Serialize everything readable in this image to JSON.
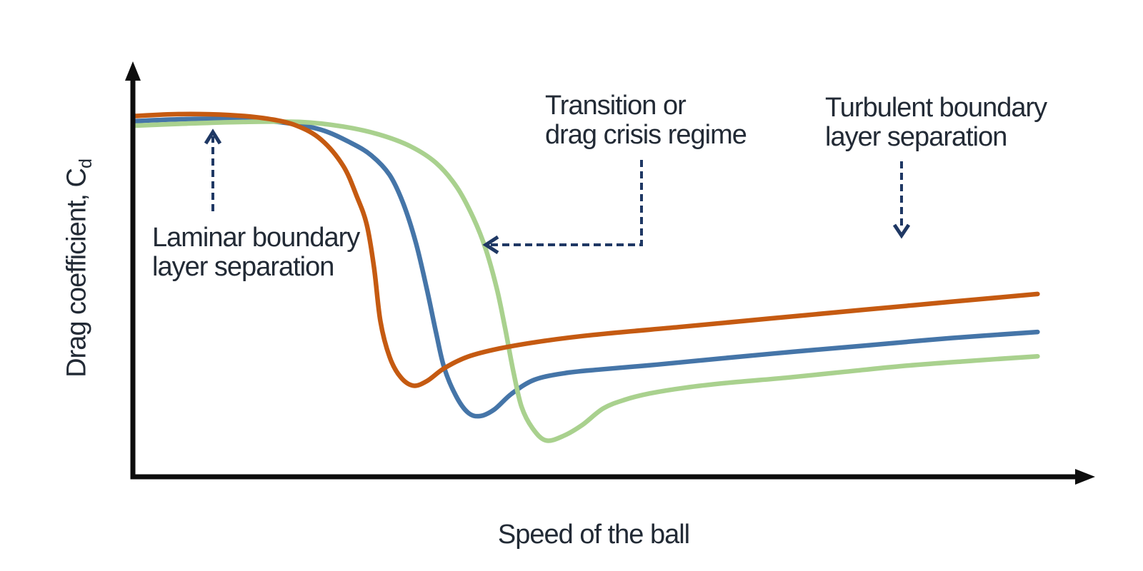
{
  "figure": {
    "x_axis_label": "Speed of the ball",
    "y_axis_label_main": "Drag coefficient, C",
    "y_axis_label_sub": "d"
  },
  "colors": {
    "orange_curve": "#C55A11",
    "blue_curve": "#4575A8",
    "green_curve": "#A9D18E",
    "annotation_navy": "#1F3864",
    "text": "#222A35",
    "axis": "#0D0D0D"
  },
  "chart_data": {
    "type": "line",
    "title": "",
    "xlabel": "Speed of the ball",
    "ylabel": "Drag coefficient, Cd",
    "grid": false,
    "legend": false,
    "axes_numeric": false,
    "coordinates": "normalized: x = fraction of speed axis (0-1), y = fraction of drag-coefficient axis (0-1); axes are qualitative with no tick labels",
    "annotations": [
      {
        "text": "Laminar boundary\nlayer separation",
        "arrow": "dashed, pointing up at the flat high-Cd region of the curves"
      },
      {
        "text": "Transition or\ndrag crisis regime",
        "arrow": "dashed elbow, pointing left at the steep drop of the green curve"
      },
      {
        "text": "Turbulent boundary\nlayer separation",
        "arrow": "dashed, pointing down toward the rising post-crisis curves"
      }
    ],
    "series": [
      {
        "name": "orange",
        "color": "#C55A11",
        "points": [
          [
            0.0,
            0.874
          ],
          [
            0.05,
            0.879
          ],
          [
            0.105,
            0.877
          ],
          [
            0.148,
            0.868
          ],
          [
            0.18,
            0.851
          ],
          [
            0.207,
            0.817
          ],
          [
            0.231,
            0.754
          ],
          [
            0.246,
            0.68
          ],
          [
            0.257,
            0.611
          ],
          [
            0.265,
            0.507
          ],
          [
            0.272,
            0.377
          ],
          [
            0.282,
            0.291
          ],
          [
            0.294,
            0.242
          ],
          [
            0.308,
            0.221
          ],
          [
            0.323,
            0.232
          ],
          [
            0.342,
            0.263
          ],
          [
            0.368,
            0.291
          ],
          [
            0.403,
            0.311
          ],
          [
            0.451,
            0.329
          ],
          [
            0.506,
            0.344
          ],
          [
            0.6,
            0.363
          ],
          [
            0.702,
            0.384
          ],
          [
            0.804,
            0.405
          ],
          [
            0.898,
            0.424
          ],
          [
            0.994,
            0.443
          ]
        ]
      },
      {
        "name": "blue",
        "color": "#4575A8",
        "points": [
          [
            0.0,
            0.862
          ],
          [
            0.058,
            0.867
          ],
          [
            0.113,
            0.867
          ],
          [
            0.168,
            0.858
          ],
          [
            0.207,
            0.841
          ],
          [
            0.239,
            0.81
          ],
          [
            0.262,
            0.779
          ],
          [
            0.282,
            0.732
          ],
          [
            0.297,
            0.663
          ],
          [
            0.311,
            0.567
          ],
          [
            0.323,
            0.455
          ],
          [
            0.333,
            0.351
          ],
          [
            0.342,
            0.265
          ],
          [
            0.355,
            0.196
          ],
          [
            0.368,
            0.156
          ],
          [
            0.381,
            0.147
          ],
          [
            0.397,
            0.163
          ],
          [
            0.416,
            0.201
          ],
          [
            0.441,
            0.235
          ],
          [
            0.474,
            0.251
          ],
          [
            0.513,
            0.26
          ],
          [
            0.576,
            0.272
          ],
          [
            0.647,
            0.287
          ],
          [
            0.725,
            0.303
          ],
          [
            0.804,
            0.318
          ],
          [
            0.898,
            0.336
          ],
          [
            0.994,
            0.351
          ]
        ]
      },
      {
        "name": "green",
        "color": "#A9D18E",
        "points": [
          [
            0.0,
            0.851
          ],
          [
            0.058,
            0.856
          ],
          [
            0.121,
            0.86
          ],
          [
            0.184,
            0.86
          ],
          [
            0.231,
            0.849
          ],
          [
            0.27,
            0.83
          ],
          [
            0.305,
            0.801
          ],
          [
            0.333,
            0.761
          ],
          [
            0.356,
            0.702
          ],
          [
            0.374,
            0.628
          ],
          [
            0.388,
            0.55
          ],
          [
            0.4,
            0.455
          ],
          [
            0.409,
            0.36
          ],
          [
            0.418,
            0.256
          ],
          [
            0.427,
            0.17
          ],
          [
            0.439,
            0.118
          ],
          [
            0.454,
            0.088
          ],
          [
            0.474,
            0.1
          ],
          [
            0.494,
            0.126
          ],
          [
            0.517,
            0.166
          ],
          [
            0.541,
            0.187
          ],
          [
            0.568,
            0.202
          ],
          [
            0.607,
            0.216
          ],
          [
            0.655,
            0.228
          ],
          [
            0.717,
            0.24
          ],
          [
            0.78,
            0.254
          ],
          [
            0.843,
            0.268
          ],
          [
            0.914,
            0.28
          ],
          [
            0.994,
            0.292
          ]
        ]
      }
    ]
  }
}
